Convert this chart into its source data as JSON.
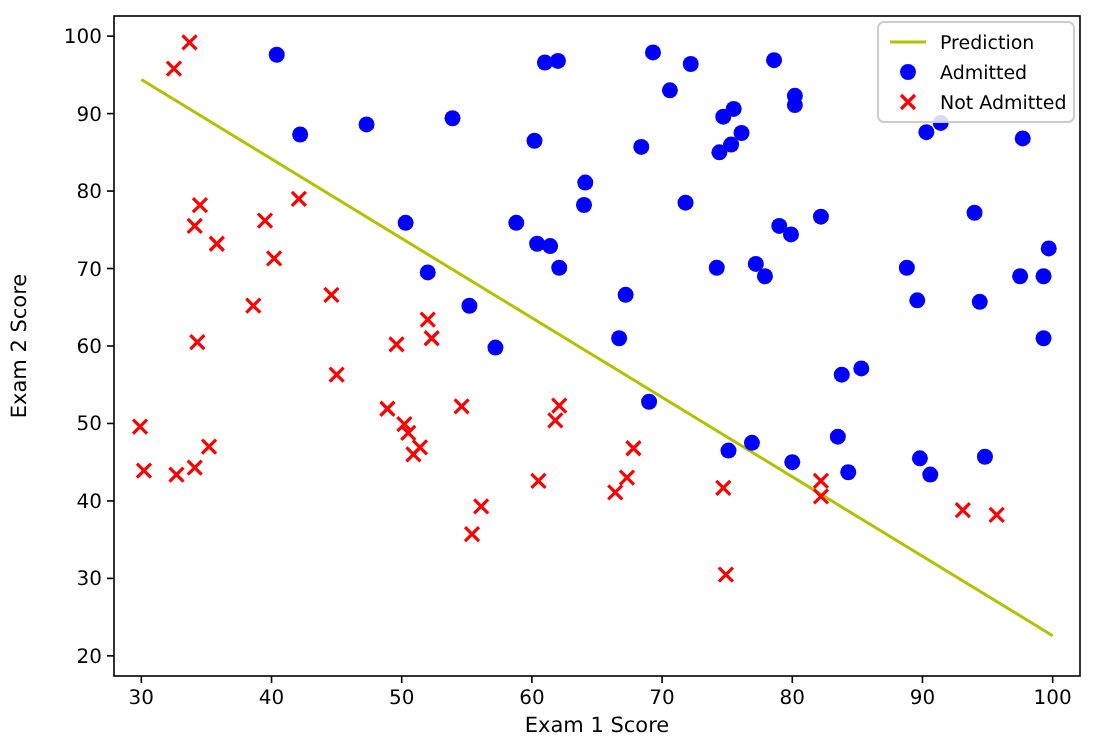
{
  "chart_data": {
    "type": "scatter",
    "xlabel": "Exam 1 Score",
    "ylabel": "Exam 2 Score",
    "xlim": [
      27.9,
      102.1
    ],
    "ylim": [
      17.4,
      102.6
    ],
    "xticks": [
      30,
      40,
      50,
      60,
      70,
      80,
      90,
      100
    ],
    "yticks": [
      20,
      30,
      40,
      50,
      60,
      70,
      80,
      90,
      100
    ],
    "grid": false,
    "legend": "top right",
    "series": [
      {
        "name": "Prediction",
        "type": "line",
        "color": "#b5c000",
        "line_style": "solid",
        "marker": "none",
        "x": [
          30,
          100
        ],
        "values": [
          94.4,
          22.6
        ]
      },
      {
        "name": "Admitted",
        "color": "#0000ff",
        "marker": "circle",
        "x": [
          40.4,
          42.2,
          47.3,
          53.9,
          61.0,
          62.0,
          60.2,
          50.3,
          58.8,
          60.4,
          61.4,
          62.1,
          52.0,
          55.2,
          57.2,
          69.3,
          72.2,
          78.6,
          70.6,
          74.7,
          75.5,
          76.1,
          75.3,
          74.4,
          80.2,
          80.2,
          68.4,
          64.1,
          64.0,
          71.8,
          79.0,
          79.9,
          82.2,
          74.2,
          77.2,
          77.9,
          67.2,
          66.7,
          90.3,
          91.4,
          97.7,
          94.0,
          99.7,
          97.5,
          99.3,
          88.8,
          89.6,
          94.4,
          99.3,
          69.0,
          83.8,
          85.3,
          75.1,
          76.9,
          83.5,
          80.0,
          84.3,
          89.8,
          90.6,
          94.8
        ],
        "values": [
          97.6,
          87.3,
          88.6,
          89.4,
          96.6,
          96.8,
          86.5,
          75.9,
          75.9,
          73.2,
          72.9,
          70.1,
          69.5,
          65.2,
          59.8,
          97.9,
          96.4,
          96.9,
          93.0,
          89.6,
          90.6,
          87.5,
          86.0,
          85.0,
          92.3,
          91.1,
          85.7,
          81.1,
          78.2,
          78.5,
          75.5,
          74.4,
          76.7,
          70.1,
          70.6,
          69.0,
          66.6,
          61.0,
          87.6,
          88.8,
          86.8,
          77.2,
          72.6,
          69.0,
          69.0,
          70.1,
          65.9,
          65.7,
          61.0,
          52.8,
          56.3,
          57.1,
          46.5,
          47.5,
          48.3,
          45.0,
          43.7,
          45.5,
          43.4,
          45.7
        ]
      },
      {
        "name": "Not Admitted",
        "color": "#ff0000",
        "marker": "cross",
        "x": [
          33.7,
          32.5,
          34.5,
          34.1,
          35.8,
          39.5,
          42.1,
          40.2,
          38.6,
          44.6,
          34.3,
          52.0,
          52.3,
          49.6,
          45.0,
          29.9,
          30.2,
          32.7,
          34.1,
          35.2,
          48.9,
          50.2,
          50.5,
          51.4,
          50.9,
          54.6,
          56.1,
          55.4,
          62.1,
          61.8,
          60.5,
          67.8,
          67.3,
          66.4,
          74.7,
          74.9,
          82.2,
          82.2,
          93.1,
          95.7
        ],
        "values": [
          99.2,
          95.8,
          78.2,
          75.5,
          73.2,
          76.2,
          79.0,
          71.3,
          65.2,
          66.6,
          60.5,
          63.4,
          61.0,
          60.2,
          56.3,
          49.6,
          43.9,
          43.4,
          44.3,
          47.0,
          51.9,
          49.9,
          48.8,
          46.9,
          46.0,
          52.2,
          39.3,
          35.7,
          52.3,
          50.4,
          42.6,
          46.8,
          43.0,
          41.1,
          41.7,
          30.5,
          42.6,
          40.6,
          38.8,
          38.2
        ]
      }
    ]
  }
}
